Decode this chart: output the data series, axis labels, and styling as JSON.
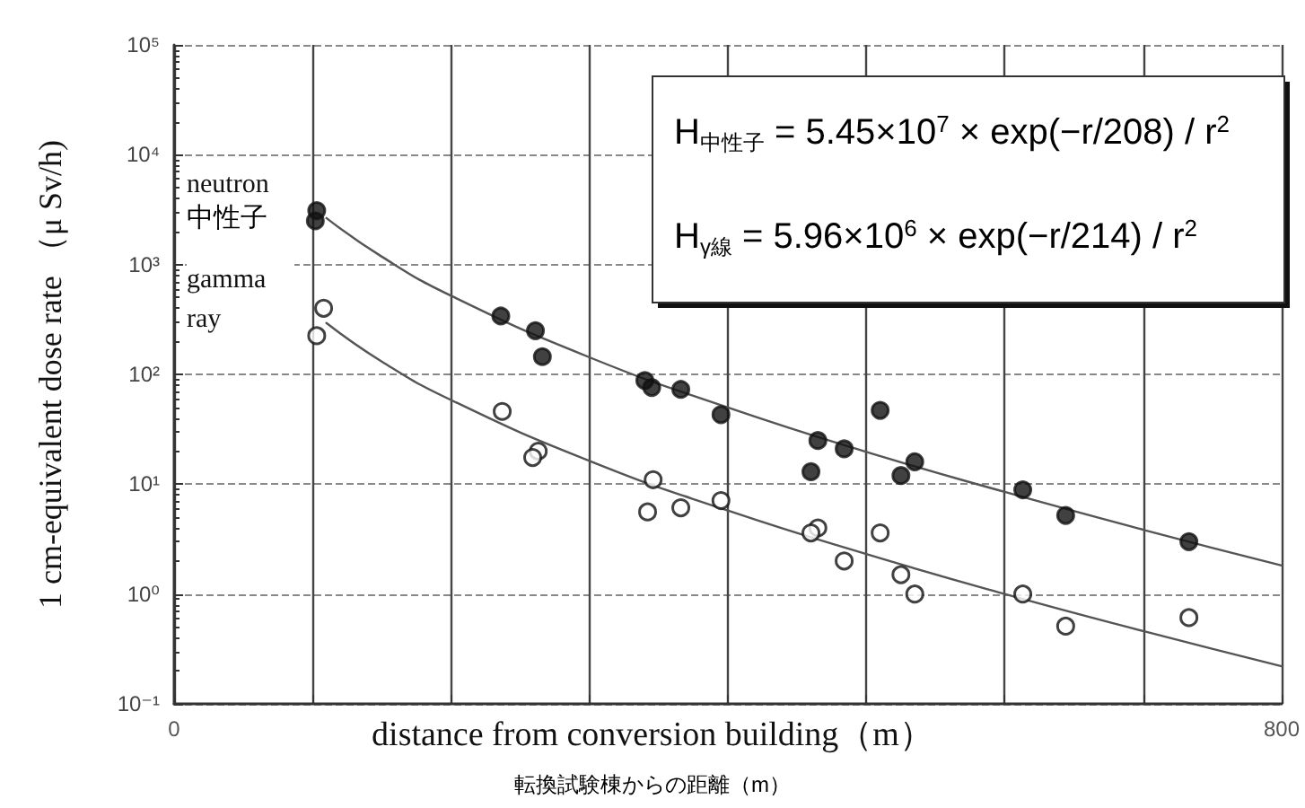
{
  "chart_data": {
    "type": "scatter",
    "xlabel": "distance from conversion building（m）",
    "ylabel": "1 cm-equivalent dose rate （μ Sv/h)",
    "xlim": [
      0,
      800
    ],
    "xticks": [
      0,
      {
        "value": 100,
        "label": null
      },
      {
        "value": 200,
        "label": null
      },
      {
        "value": 300,
        "label": null
      },
      {
        "value": 400,
        "label": null
      },
      {
        "value": 500,
        "label": null
      },
      {
        "value": 600,
        "label": null
      },
      {
        "value": 700,
        "label": null
      },
      800
    ],
    "ylim": [
      0.1,
      100000
    ],
    "yticks": [
      {
        "value": 0.1,
        "label": "10⁻¹"
      },
      {
        "value": 1,
        "label": "10⁰"
      },
      {
        "value": 10,
        "label": "10¹"
      },
      {
        "value": 100,
        "label": "10²"
      },
      {
        "value": 1000,
        "label": "10³"
      },
      {
        "value": 10000,
        "label": "10⁴"
      },
      {
        "value": 100000,
        "label": "10⁵"
      }
    ],
    "log": "y",
    "grid": true,
    "legend": false,
    "marker": "circle",
    "annotations": [
      "H$_{中性子}$ = 5.45×10$^{7}$ × exp(−r/208) / r$^{2}$",
      "H$_{γ線}$ = 5.96×10$^{6}$ × exp(−r/214) / r$^{2}$",
      "中性子",
      "転換試験棟からの距離（m）"
    ],
    "series": [
      {
        "name": "neutron",
        "color": "#111111",
        "x": [
          103,
          102,
          236,
          261,
          266,
          340,
          345,
          366,
          395,
          510,
          465,
          484,
          460,
          525,
          535,
          613,
          644,
          733
        ],
        "values": [
          3100,
          2500,
          340,
          250,
          145,
          88,
          76,
          73,
          43,
          47,
          25,
          21,
          13,
          12,
          16,
          8.9,
          5.2,
          3.0
        ]
      },
      {
        "name": "gamma ray",
        "color": "#ffffff",
        "x": [
          108,
          103,
          237,
          263,
          259,
          346,
          342,
          366,
          395,
          465,
          460,
          510,
          484,
          525,
          535,
          613,
          644,
          733
        ],
        "values": [
          400,
          225,
          46,
          20,
          17.5,
          11,
          5.6,
          6.1,
          7.1,
          4.0,
          3.6,
          3.6,
          2.0,
          1.5,
          1.0,
          1.0,
          0.51,
          0.61
        ]
      },
      {
        "type": "line",
        "color": "#555555",
        "marker": "none",
        "x": [
          110,
          150,
          200,
          300,
          400,
          500,
          600,
          700,
          800
        ],
        "values": [
          2650,
          1180,
          520,
          143,
          50,
          19.7,
          8.5,
          3.85,
          1.82
        ]
      },
      {
        "type": "line",
        "color": "#555555",
        "marker": "none",
        "x": [
          110,
          150,
          200,
          300,
          400,
          500,
          600,
          700,
          800
        ],
        "values": [
          294,
          131,
          58.5,
          16.3,
          5.75,
          2.31,
          1.0,
          0.46,
          0.22
        ]
      }
    ]
  }
}
